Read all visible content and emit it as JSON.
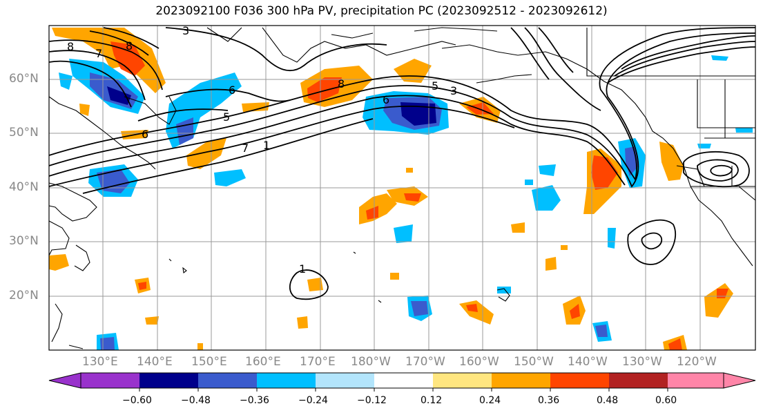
{
  "title": "2023092100 F036 300 hPa PV, precipitation PC (2023092512 - 2023092612)",
  "lat_labels": [
    "60°N",
    "50°N",
    "40°N",
    "30°N",
    "20°N"
  ],
  "lon_labels": [
    "130°E",
    "140°E",
    "150°E",
    "160°E",
    "170°E",
    "180°W",
    "170°W",
    "160°W",
    "150°W",
    "140°W",
    "130°W",
    "120°W"
  ],
  "contour_labels": [
    "8",
    "7",
    "6",
    "5",
    "7",
    "8",
    "6",
    "5",
    "3",
    "1",
    "1",
    "3",
    "8",
    "6"
  ],
  "colorbar": {
    "ticks": [
      "−0.60",
      "−0.48",
      "−0.36",
      "−0.24",
      "−0.12",
      "0.12",
      "0.24",
      "0.36",
      "0.48",
      "0.60"
    ],
    "colors": [
      "#9932CC",
      "#00008B",
      "#3A5BCD",
      "#00BFFF",
      "#B3E5FC",
      "#FFFFFF",
      "#FFE680",
      "#FFA500",
      "#FF4500",
      "#B22222",
      "#FF85A8"
    ]
  },
  "style": {
    "grid_color": "#999999",
    "land_line_color": "#000000",
    "pv_contour_color": "#000000"
  }
}
